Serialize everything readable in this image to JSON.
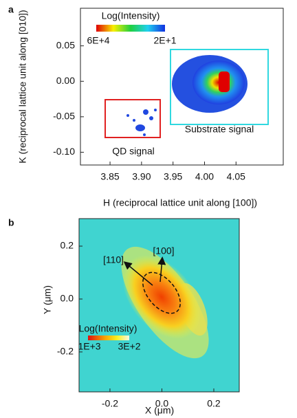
{
  "chart_data": [
    {
      "type": "heatmap",
      "panel": "a",
      "xlabel": "H (reciprocal lattice unit along [100])",
      "ylabel": "K (reciprocal lattice unit along [010])",
      "xlim": [
        3.803,
        4.125
      ],
      "ylim": [
        -0.118,
        0.103
      ],
      "xticks": [
        3.85,
        {
          "value": 3.9,
          "label": "3.90"
        },
        3.95,
        {
          "value": 4.0,
          "label": "4.00"
        },
        4.05
      ],
      "yticks": [
        0.05,
        {
          "value": 0,
          "label": "0.00"
        },
        -0.05,
        {
          "value": -0.1,
          "label": "-0.10"
        }
      ],
      "colorbar": {
        "title": "Log(Intensity)",
        "labels": [
          "6E+4",
          "2E+1"
        ]
      },
      "annotations": [
        "QD signal",
        "Substrate signal"
      ]
    },
    {
      "type": "heatmap",
      "panel": "b",
      "xlabel": "X (μm)",
      "ylabel": "Y (μm)",
      "xlim": [
        -0.319,
        0.298
      ],
      "ylim": [
        -0.351,
        0.304
      ],
      "xticks": [
        -0.2,
        {
          "value": 0,
          "label": "0.0"
        },
        0.2
      ],
      "yticks": [
        0.2,
        {
          "value": 0,
          "label": "0.0"
        },
        -0.2
      ],
      "colorbar": {
        "title": "Log(Intensity)",
        "labels": [
          "1E+3",
          "3E+2"
        ]
      },
      "annotations": [
        "[110]",
        "[100]"
      ]
    }
  ]
}
